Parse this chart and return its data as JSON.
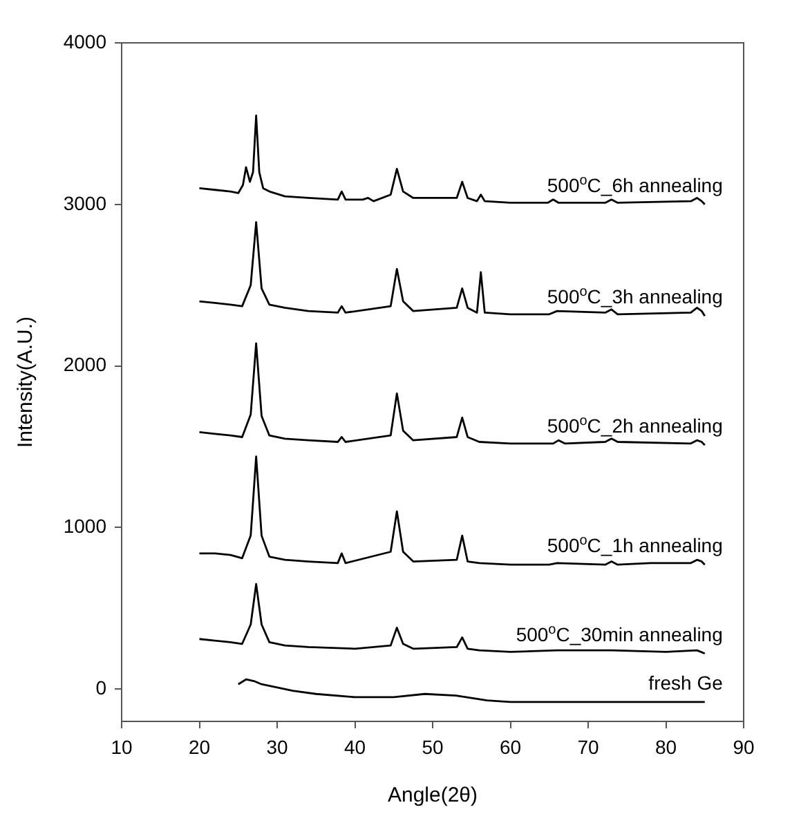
{
  "chart_data": {
    "type": "line",
    "xlabel": "Angle(2θ)",
    "ylabel": "Intensity(A.U.)",
    "xlim": [
      10,
      90
    ],
    "xticks": [
      10,
      20,
      30,
      40,
      50,
      60,
      70,
      80,
      90
    ],
    "ylim": [
      -200,
      4000
    ],
    "yticks": [
      0,
      1000,
      2000,
      3000,
      4000
    ],
    "legend": false,
    "marker": "none",
    "line_style": "solid",
    "series": [
      {
        "name": "500$^{o}$C_6h annealing",
        "color": "#000000",
        "x": [
          20,
          22,
          24,
          25,
          25.6,
          26,
          26.5,
          26.9,
          27.3,
          27.7,
          28.2,
          29,
          31,
          34,
          37.8,
          38.3,
          38.8,
          41,
          41.7,
          42.4,
          44.6,
          45.4,
          46.2,
          47.5,
          53.1,
          53.8,
          54.5,
          55.7,
          56.2,
          56.7,
          60,
          64.8,
          65.5,
          66.2,
          72.2,
          73,
          73.8,
          83.2,
          84,
          84.6,
          85
        ],
        "values": [
          3100,
          3090,
          3080,
          3070,
          3120,
          3230,
          3140,
          3200,
          3550,
          3200,
          3100,
          3080,
          3050,
          3040,
          3030,
          3080,
          3030,
          3030,
          3040,
          3020,
          3060,
          3220,
          3080,
          3040,
          3040,
          3140,
          3040,
          3020,
          3060,
          3020,
          3010,
          3010,
          3030,
          3010,
          3010,
          3030,
          3010,
          3020,
          3040,
          3020,
          3000
        ]
      },
      {
        "name": "500$^{o}$C_3h annealing",
        "color": "#000000",
        "x": [
          20,
          22,
          24,
          25.5,
          26.6,
          27.3,
          28,
          29,
          31,
          34,
          37.8,
          38.3,
          38.8,
          44.6,
          45.4,
          46.2,
          47.5,
          53.1,
          53.8,
          54.5,
          55.7,
          56.2,
          56.7,
          60,
          65,
          66,
          72.2,
          73,
          73.8,
          83.2,
          84,
          84.6,
          85
        ],
        "values": [
          2400,
          2390,
          2380,
          2370,
          2500,
          2890,
          2480,
          2380,
          2360,
          2340,
          2330,
          2370,
          2330,
          2370,
          2600,
          2400,
          2340,
          2360,
          2480,
          2360,
          2330,
          2580,
          2330,
          2320,
          2320,
          2340,
          2330,
          2350,
          2320,
          2330,
          2360,
          2340,
          2310
        ]
      },
      {
        "name": "500$^{o}$C_2h annealing",
        "color": "#000000",
        "x": [
          20,
          22,
          24,
          25.5,
          26.6,
          27.3,
          28,
          29,
          31,
          34,
          37.8,
          38.3,
          38.8,
          44.6,
          45.4,
          46.2,
          47.5,
          53.1,
          53.8,
          54.5,
          56,
          60,
          65.5,
          66.2,
          67,
          72.2,
          73,
          73.8,
          83.2,
          84,
          84.6,
          85
        ],
        "values": [
          1590,
          1580,
          1570,
          1560,
          1700,
          2140,
          1690,
          1570,
          1550,
          1540,
          1530,
          1560,
          1530,
          1570,
          1830,
          1600,
          1540,
          1560,
          1680,
          1560,
          1530,
          1520,
          1520,
          1540,
          1520,
          1530,
          1550,
          1530,
          1520,
          1540,
          1530,
          1510
        ]
      },
      {
        "name": "500$^{o}$C_1h annealing",
        "color": "#000000",
        "x": [
          20,
          22,
          24,
          25.5,
          26.6,
          27.3,
          28,
          29,
          31,
          34,
          37.8,
          38.3,
          38.8,
          44.6,
          45.4,
          46.2,
          47.5,
          53.1,
          53.8,
          54.5,
          56,
          60,
          65,
          66,
          72.2,
          73,
          73.8,
          78,
          83.2,
          84,
          84.6,
          85
        ],
        "values": [
          840,
          840,
          830,
          810,
          950,
          1440,
          950,
          820,
          800,
          790,
          780,
          840,
          780,
          850,
          1100,
          850,
          790,
          800,
          950,
          790,
          780,
          770,
          770,
          780,
          770,
          790,
          770,
          780,
          780,
          800,
          790,
          770
        ]
      },
      {
        "name": "500$^{o}$C_30min annealing",
        "color": "#000000",
        "x": [
          20,
          22,
          24,
          25.5,
          26.6,
          27.3,
          28,
          29,
          31,
          34,
          40,
          44.6,
          45.4,
          46.2,
          47.5,
          53.1,
          53.8,
          54.5,
          56,
          60,
          66,
          73,
          80,
          84,
          85
        ],
        "values": [
          310,
          300,
          290,
          280,
          400,
          650,
          400,
          290,
          270,
          260,
          250,
          270,
          380,
          280,
          250,
          260,
          320,
          250,
          240,
          230,
          240,
          240,
          230,
          240,
          220
        ]
      },
      {
        "name": "fresh Ge",
        "color": "#000000",
        "x": [
          25,
          26,
          27,
          28,
          30,
          32,
          35,
          40,
          45,
          49,
          53,
          57,
          60,
          65,
          70,
          75,
          80,
          85
        ],
        "values": [
          30,
          60,
          50,
          30,
          10,
          -10,
          -30,
          -50,
          -50,
          -30,
          -40,
          -70,
          -80,
          -80,
          -80,
          -80,
          -80,
          -80
        ]
      }
    ]
  }
}
